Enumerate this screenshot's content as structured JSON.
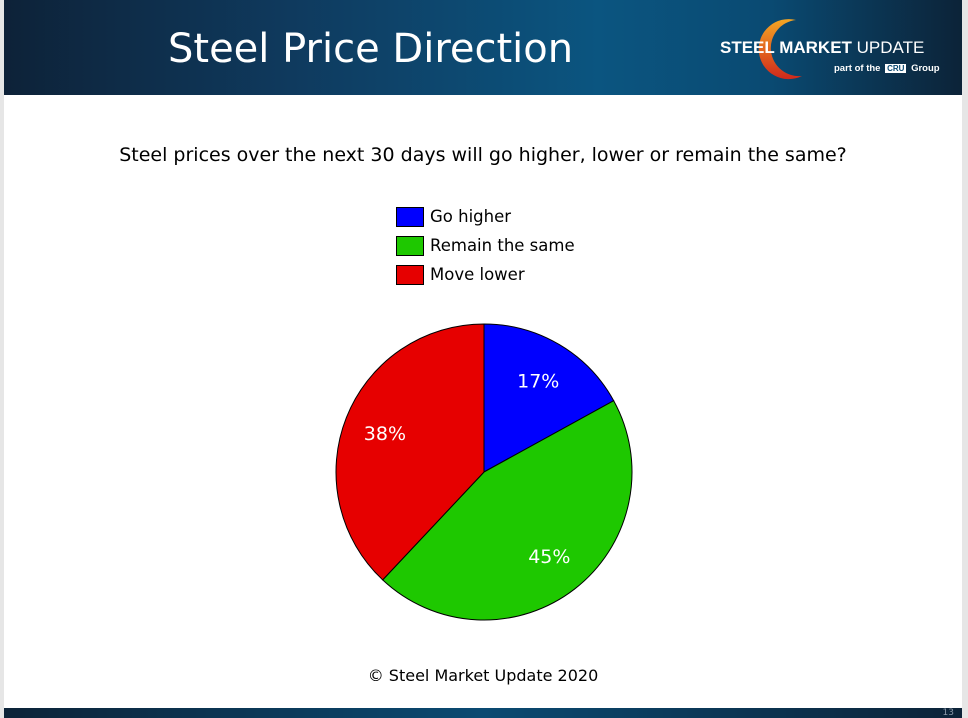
{
  "header": {
    "title": "Steel Price Direction",
    "logo_text_bold": "STEEL MARKET",
    "logo_text_light": " UPDATE",
    "logo_sub_pre": "part of the",
    "logo_sub_badge": "CRU",
    "logo_sub_post": "Group"
  },
  "chart_data": {
    "type": "pie",
    "title": "Steel prices over the next 30 days will go higher, lower or remain the same?",
    "legend_position": "top",
    "slices": [
      {
        "label": "Go higher",
        "value": 17,
        "display": "17%",
        "color": "#0000ff"
      },
      {
        "label": "Remain the same",
        "value": 45,
        "display": "45%",
        "color": "#1ec800"
      },
      {
        "label": "Move lower",
        "value": 38,
        "display": "38%",
        "color": "#e60000"
      }
    ]
  },
  "footer": {
    "copyright": "© Steel Market Update 2020",
    "page_number": "13"
  }
}
